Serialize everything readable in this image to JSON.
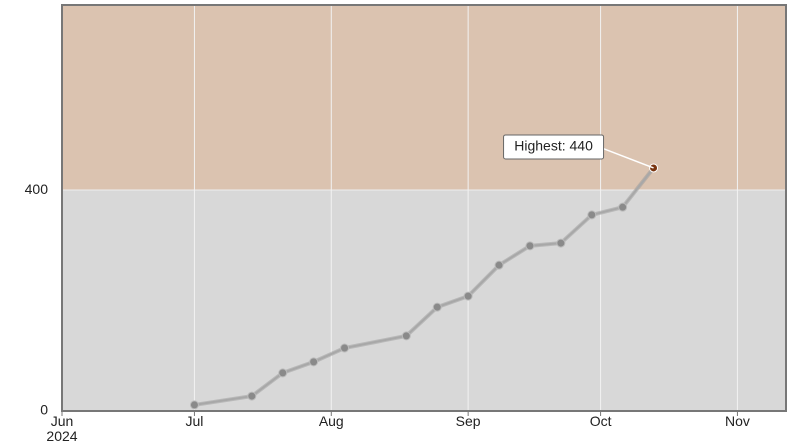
{
  "chart_data": {
    "type": "line",
    "x": [
      "2024-07-01",
      "2024-07-14",
      "2024-07-21",
      "2024-07-28",
      "2024-08-04",
      "2024-08-18",
      "2024-08-25",
      "2024-09-01",
      "2024-09-08",
      "2024-09-15",
      "2024-09-22",
      "2024-09-29",
      "2024-10-06",
      "2024-10-13"
    ],
    "series": [
      {
        "color": "#a8a8a8",
        "marker_color": "#8a8a8a",
        "highlight_color": "#7a3510",
        "values": [
          11,
          27,
          69,
          89,
          114,
          136,
          188,
          208,
          264,
          299,
          304,
          355,
          369,
          440
        ]
      }
    ],
    "annotation": {
      "text": "Highest: 440"
    },
    "xlim": [
      "2024-06-01",
      "2024-11-12"
    ],
    "xticks": [
      {
        "value": "2024-06-01",
        "label": "Jun 2024"
      },
      {
        "value": "2024-07-01",
        "label": "Jul"
      },
      {
        "value": "2024-08-01",
        "label": "Aug"
      },
      {
        "value": "2024-09-01",
        "label": "Sep"
      },
      {
        "value": "2024-10-01",
        "label": "Oct"
      },
      {
        "value": "2024-11-01",
        "label": "Nov"
      }
    ],
    "ylim": [
      0,
      735
    ],
    "yticks": [
      0,
      400
    ],
    "grid": true,
    "background": "#d8d8d8",
    "bands": [
      {
        "from": 400,
        "to": 735,
        "color": "#dbc3b0"
      }
    ]
  }
}
